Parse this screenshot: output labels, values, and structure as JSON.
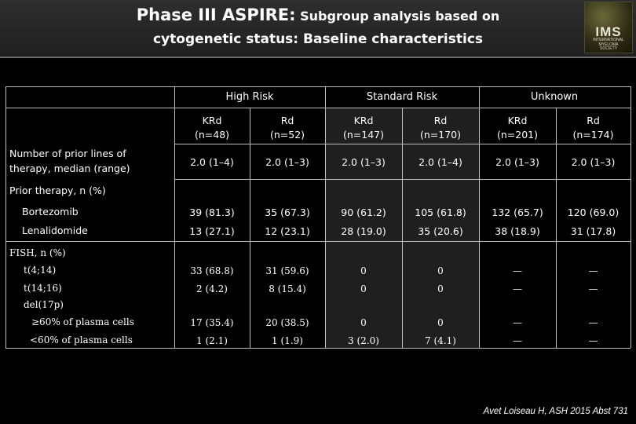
{
  "header": {
    "title_bold": "Phase III ASPIRE:",
    "title_rest": " Subgroup analysis based on",
    "subtitle": "cytogenetic status: Baseline characteristics"
  },
  "logo": {
    "text": "IMS",
    "subtext": "INTERNATIONAL\nMYELOMA\nSOCIETY"
  },
  "table": {
    "groups": [
      "High Risk",
      "Standard Risk",
      "Unknown"
    ],
    "arms": [
      {
        "name": "KRd",
        "n": "(n=48)"
      },
      {
        "name": "Rd",
        "n": "(n=52)"
      },
      {
        "name": "KRd",
        "n": "(n=147)"
      },
      {
        "name": "Rd",
        "n": "(n=170)"
      },
      {
        "name": "KRd",
        "n": "(n=201)"
      },
      {
        "name": "Rd",
        "n": "(n=174)"
      }
    ],
    "prior_lines": {
      "label_1": "Number of prior lines of",
      "label_2": "therapy, median (range)",
      "values": [
        "2.0 (1–4)",
        "2.0 (1–3)",
        "2.0 (1–3)",
        "2.0 (1–4)",
        "2.0 (1–3)",
        "2.0 (1–3)"
      ]
    },
    "prior_therapy_heading": "Prior therapy, n (%)",
    "bortezomib": {
      "label": "Bortezomib",
      "values": [
        "39 (81.3)",
        "35 (67.3)",
        "90 (61.2)",
        "105 (61.8)",
        "132 (65.7)",
        "120 (69.0)"
      ]
    },
    "lenalidomide": {
      "label": "Lenalidomide",
      "values": [
        "13 (27.1)",
        "12 (23.1)",
        "28 (19.0)",
        "35 (20.6)",
        "38 (18.9)",
        "31 (17.8)"
      ]
    },
    "fish_heading": "FISH, n (%)",
    "t414": {
      "label": "t(4;14)",
      "values": [
        "33 (68.8)",
        "31 (59.6)",
        "0",
        "0",
        "—",
        "—"
      ]
    },
    "t1416": {
      "label": "t(14;16)",
      "values": [
        "2 (4.2)",
        "8 (15.4)",
        "0",
        "0",
        "—",
        "—"
      ]
    },
    "del17p_heading": "del(17p)",
    "ge60": {
      "label": "≥60% of plasma cells",
      "values": [
        "17 (35.4)",
        "20 (38.5)",
        "0",
        "0",
        "—",
        "—"
      ]
    },
    "lt60": {
      "label": "<60% of plasma cells",
      "values": [
        "1 (2.1)",
        "1 (1.9)",
        "3 (2.0)",
        "7 (4.1)",
        "—",
        "—"
      ]
    }
  },
  "citation": "Avet Loiseau H, ASH 2015 Abst 731"
}
